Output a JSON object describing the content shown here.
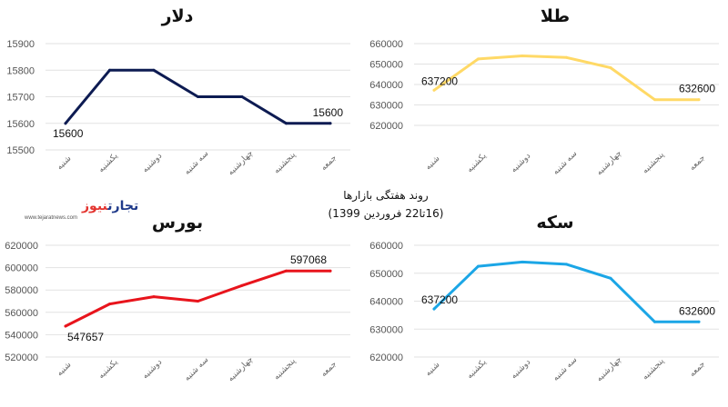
{
  "caption": {
    "line1": "روند هفتگی بازارها",
    "line2": "(16تا22 فروردین 1399)"
  },
  "logo": {
    "part1": "تجارت",
    "part2": "نیوز",
    "url": "www.tejaratnews.com",
    "color_dark": "#1f3a8a",
    "color_accent": "#e3342f"
  },
  "chart_data": [
    {
      "type": "line",
      "title": "دلار",
      "color": "#0d1b52",
      "categories": [
        "شنبه",
        "یکشنبه",
        "دوشنبه",
        "سه شنبه",
        "چهارشنبه",
        "پنجشنبه",
        "جمعه"
      ],
      "values": [
        15600,
        15800,
        15800,
        15700,
        15700,
        15600,
        15600
      ],
      "ylim": [
        15500,
        15900
      ],
      "yticks": [
        "15500",
        "15600",
        "15700",
        "15800",
        "15900"
      ],
      "labels": [
        {
          "index": 0,
          "text": "15600"
        },
        {
          "index": 6,
          "text": "15600"
        }
      ],
      "grid": true
    },
    {
      "type": "line",
      "title": "طلا",
      "color": "#ffd966",
      "categories": [
        "شنبه",
        "یکشنبه",
        "دوشنبه",
        "سه شنبه",
        "چهارشنبه",
        "پنجشنبه",
        "جمعه"
      ],
      "values": [
        637200,
        652500,
        654000,
        653200,
        648200,
        632600,
        632600
      ],
      "ylim": [
        620000,
        660000
      ],
      "yticks": [
        "620000",
        "630000",
        "640000",
        "650000",
        "660000"
      ],
      "labels": [
        {
          "index": 0,
          "text": "637200"
        },
        {
          "index": 6,
          "text": "632600"
        }
      ],
      "grid": true
    },
    {
      "type": "line",
      "title": "بورس",
      "color": "#e8141c",
      "categories": [
        "شنبه",
        "یکشنبه",
        "دوشنبه",
        "سه شنبه",
        "چهارشنبه",
        "پنجشنبه",
        "جمعه"
      ],
      "values": [
        547657,
        567500,
        574000,
        570000,
        584000,
        597068,
        597068
      ],
      "ylim": [
        520000,
        620000
      ],
      "yticks": [
        "520000",
        "540000",
        "560000",
        "580000",
        "600000",
        "620000"
      ],
      "labels": [
        {
          "index": 0,
          "text": "547657"
        },
        {
          "index": 6,
          "text": "597068"
        }
      ],
      "grid": true
    },
    {
      "type": "line",
      "title": "سکه",
      "color": "#1ba6e6",
      "categories": [
        "شنبه",
        "یکشنبه",
        "دوشنبه",
        "سه شنبه",
        "چهارشنبه",
        "پنجشنبه",
        "جمعه"
      ],
      "values": [
        637200,
        652500,
        654000,
        653200,
        648200,
        632600,
        632600
      ],
      "ylim": [
        620000,
        660000
      ],
      "yticks": [
        "620000",
        "630000",
        "640000",
        "650000",
        "660000"
      ],
      "labels": [
        {
          "index": 0,
          "text": "637200"
        },
        {
          "index": 6,
          "text": "632600"
        }
      ],
      "grid": true
    }
  ]
}
